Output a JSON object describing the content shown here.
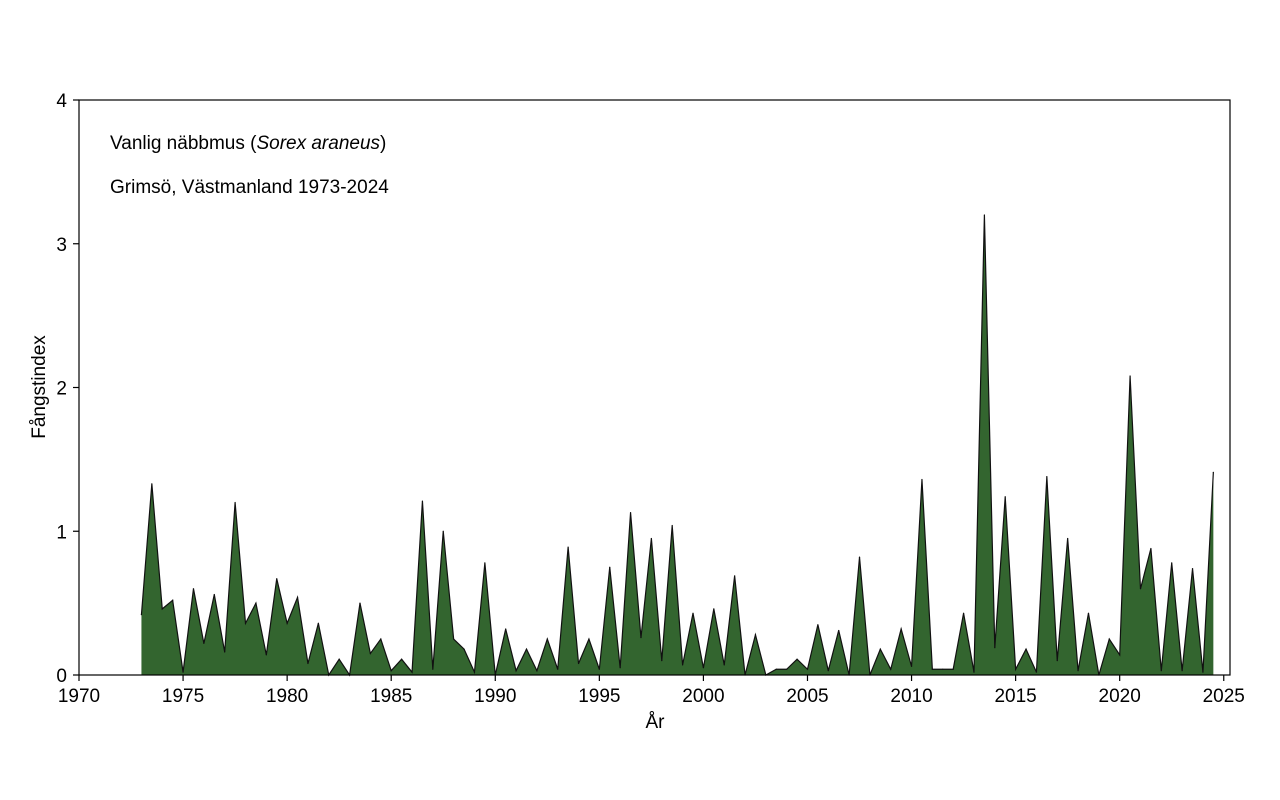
{
  "chart_data": {
    "type": "area",
    "title": "",
    "annotations": {
      "species_common": "Vanlig näbbmus (",
      "species_latin": "Sorex araneus",
      "species_close": ")",
      "location": "Grimsö, Västmanland 1973-2024"
    },
    "xlabel": "År",
    "ylabel": "Fångstindex",
    "xlim": [
      1970,
      2025.3
    ],
    "ylim": [
      0,
      4
    ],
    "xticks": [
      "1970",
      "1975",
      "1980",
      "1985",
      "1990",
      "1995",
      "2000",
      "2005",
      "2010",
      "2015",
      "2020",
      "2025"
    ],
    "yticks": [
      "0",
      "1",
      "2",
      "3",
      "4"
    ],
    "grid": false,
    "fill_color": "#33652f",
    "line_color": "#111111",
    "x": [
      1973.0,
      1973.5,
      1974.0,
      1974.5,
      1975.0,
      1975.5,
      1976.0,
      1976.5,
      1977.0,
      1977.5,
      1978.0,
      1978.5,
      1979.0,
      1979.5,
      1980.0,
      1980.5,
      1981.0,
      1981.5,
      1982.0,
      1982.5,
      1983.0,
      1983.5,
      1984.0,
      1984.5,
      1985.0,
      1985.5,
      1986.0,
      1986.5,
      1987.0,
      1987.5,
      1988.0,
      1988.5,
      1989.0,
      1989.5,
      1990.0,
      1990.5,
      1991.0,
      1991.5,
      1992.0,
      1992.5,
      1993.0,
      1993.5,
      1994.0,
      1994.5,
      1995.0,
      1995.5,
      1996.0,
      1996.5,
      1997.0,
      1997.5,
      1998.0,
      1998.5,
      1999.0,
      1999.5,
      2000.0,
      2000.5,
      2001.0,
      2001.5,
      2002.0,
      2002.5,
      2003.0,
      2003.5,
      2004.0,
      2004.5,
      2005.0,
      2005.5,
      2006.0,
      2006.5,
      2007.0,
      2007.5,
      2008.0,
      2008.5,
      2009.0,
      2009.5,
      2010.0,
      2010.5,
      2011.0,
      2011.5,
      2012.0,
      2012.5,
      2013.0,
      2013.5,
      2014.0,
      2014.5,
      2015.0,
      2015.5,
      2016.0,
      2016.5,
      2017.0,
      2017.5,
      2018.0,
      2018.5,
      2019.0,
      2019.5,
      2020.0,
      2020.5,
      2021.0,
      2021.5,
      2022.0,
      2022.5,
      2023.0,
      2023.5,
      2024.0,
      2024.5
    ],
    "values": [
      0.42,
      1.33,
      0.46,
      0.52,
      0.02,
      0.6,
      0.22,
      0.56,
      0.16,
      1.2,
      0.36,
      0.5,
      0.14,
      0.67,
      0.36,
      0.54,
      0.08,
      0.36,
      0.0,
      0.11,
      0.0,
      0.5,
      0.15,
      0.25,
      0.03,
      0.11,
      0.02,
      1.21,
      0.04,
      1.0,
      0.25,
      0.18,
      0.02,
      0.78,
      0.0,
      0.32,
      0.03,
      0.18,
      0.03,
      0.25,
      0.04,
      0.89,
      0.08,
      0.25,
      0.04,
      0.75,
      0.05,
      1.13,
      0.26,
      0.95,
      0.1,
      1.04,
      0.07,
      0.43,
      0.05,
      0.46,
      0.07,
      0.69,
      0.0,
      0.28,
      0.0,
      0.04,
      0.04,
      0.11,
      0.04,
      0.35,
      0.03,
      0.31,
      0.0,
      0.82,
      0.0,
      0.18,
      0.04,
      0.32,
      0.06,
      1.36,
      0.04,
      0.04,
      0.04,
      0.43,
      0.02,
      3.2,
      0.19,
      1.24,
      0.04,
      0.18,
      0.02,
      1.38,
      0.1,
      0.95,
      0.03,
      0.43,
      0.0,
      0.25,
      0.14,
      2.08,
      0.6,
      0.88,
      0.03,
      0.78,
      0.03,
      0.74,
      0.02,
      1.41
    ]
  }
}
